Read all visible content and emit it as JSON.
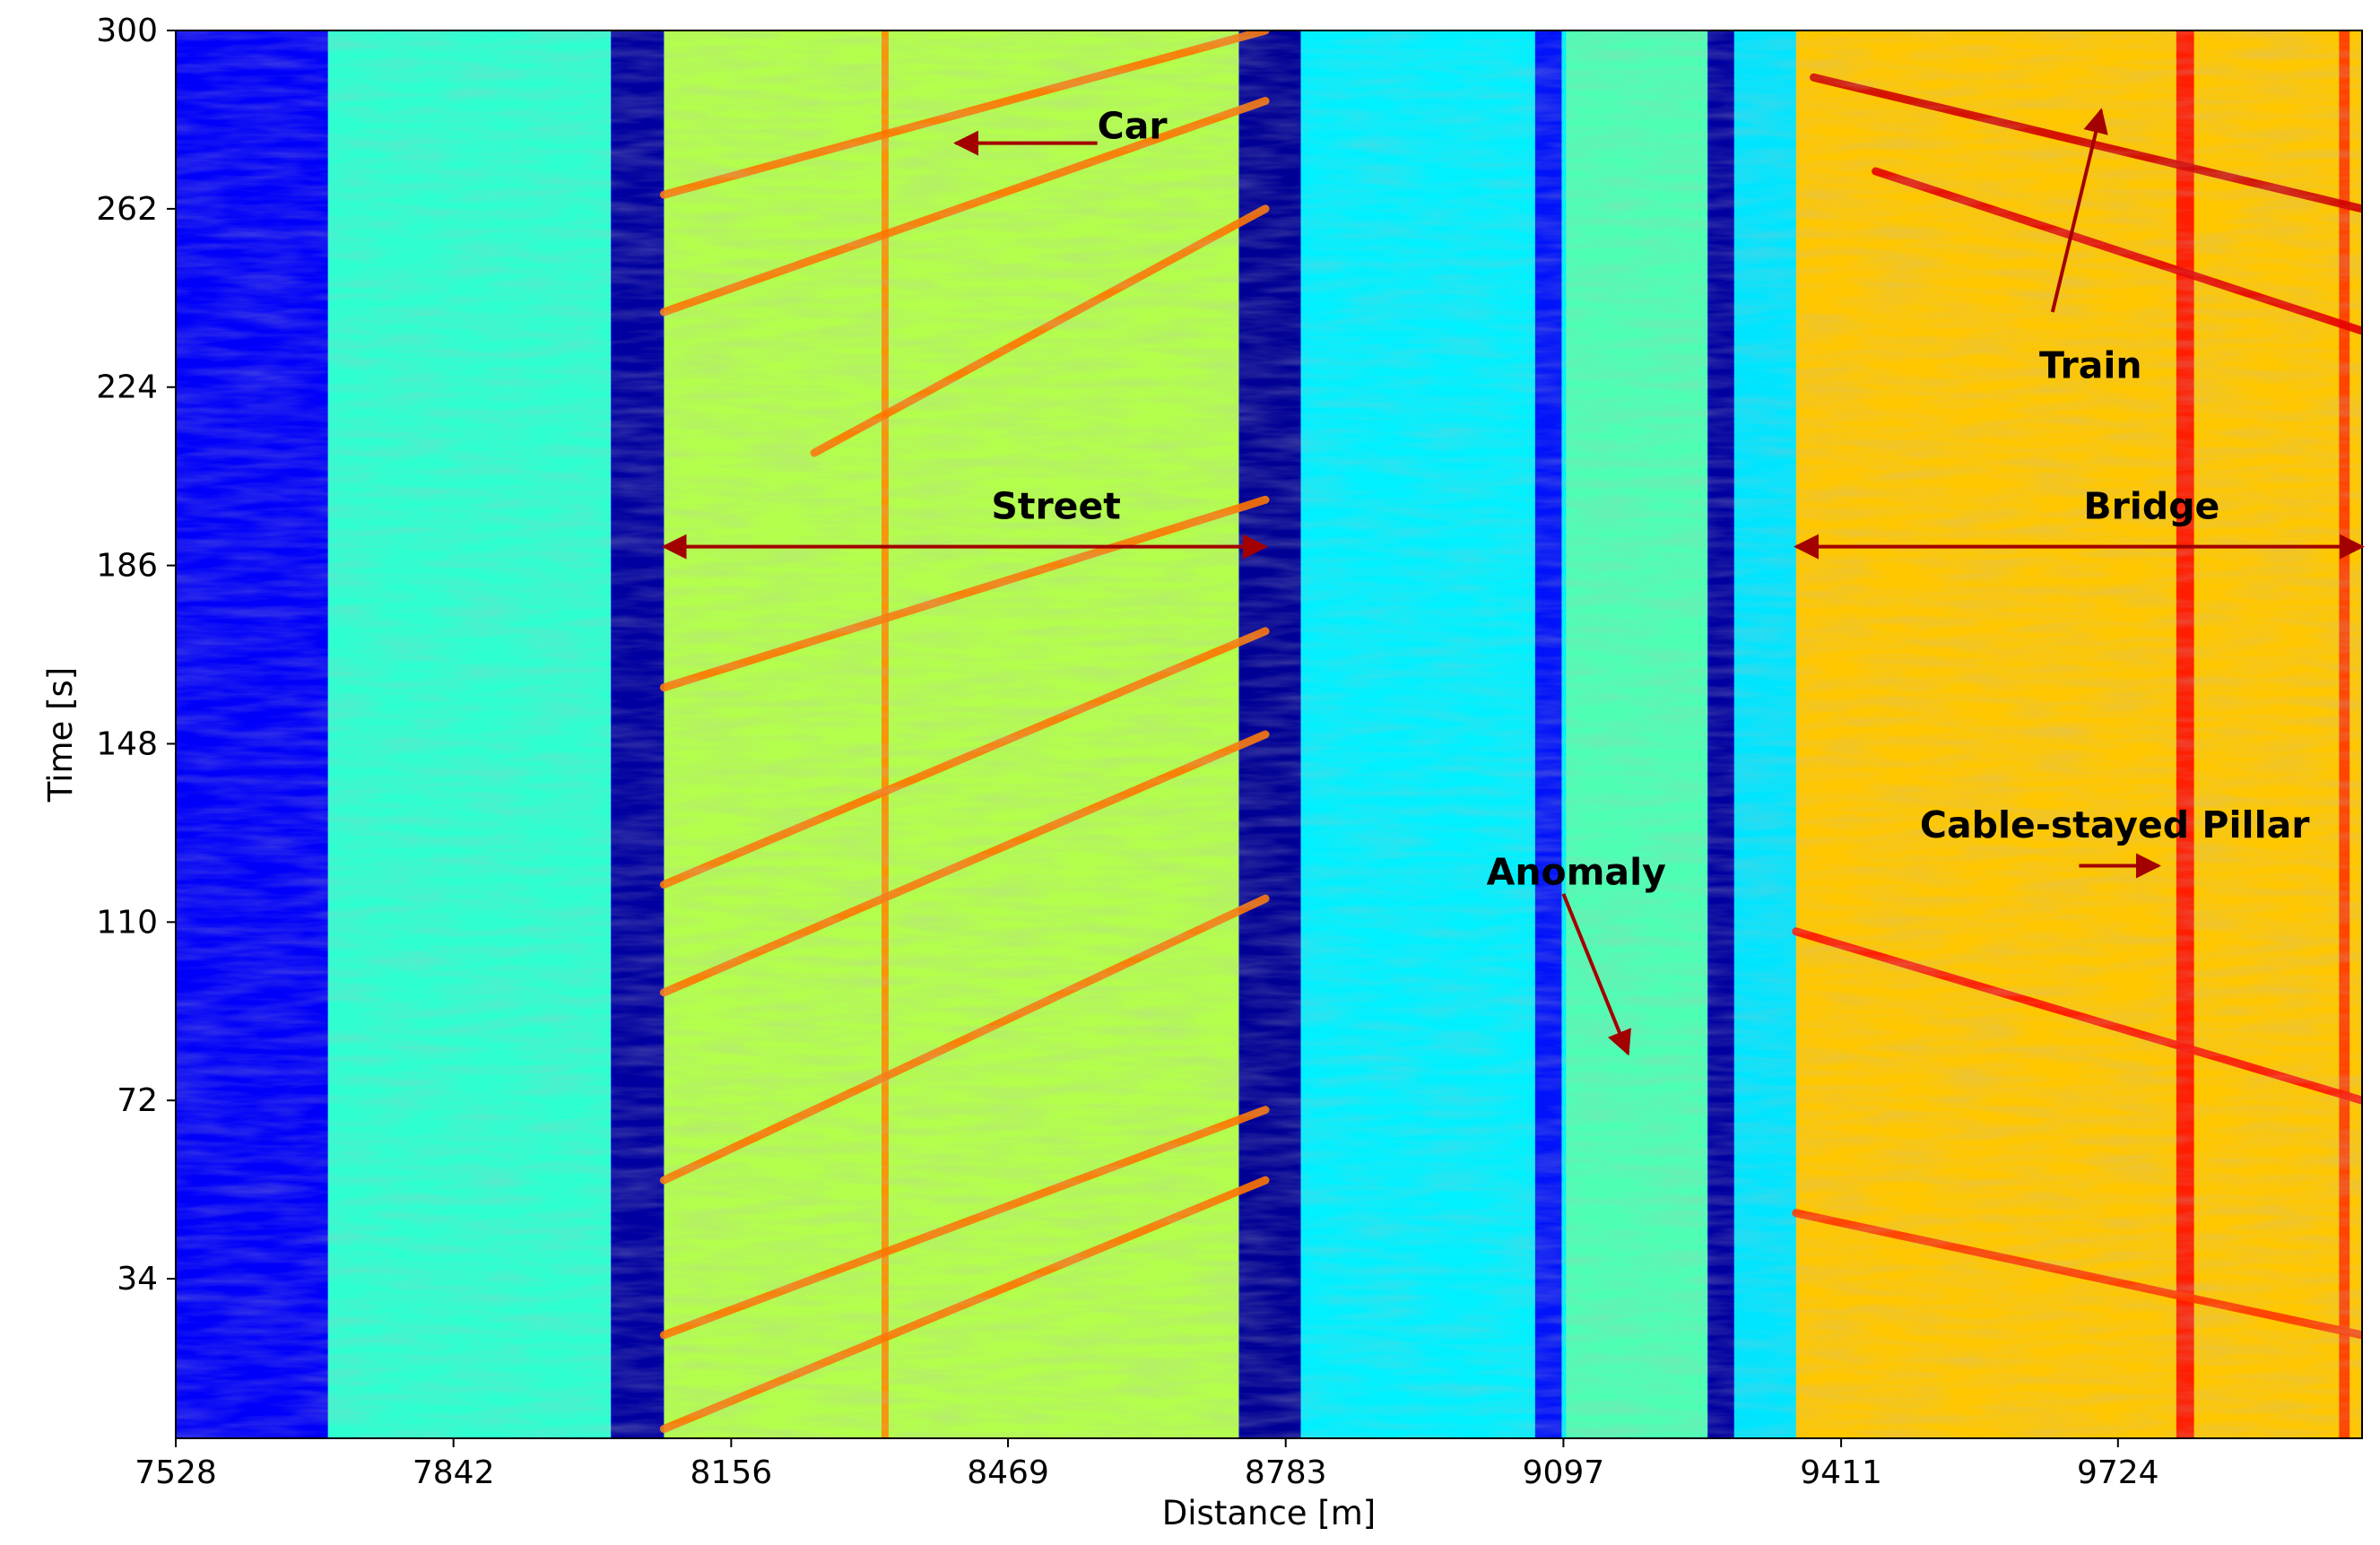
{
  "chart_data": {
    "type": "heatmap",
    "title": "",
    "xlabel": "Distance [m]",
    "ylabel": "Time [s]",
    "xlim": [
      7528,
      10000
    ],
    "ylim": [
      0,
      300
    ],
    "colormap": "jet",
    "x_ticks": [
      "7528",
      "7842",
      "8156",
      "8469",
      "8783",
      "9097",
      "9411",
      "9724"
    ],
    "x_tick_values": [
      7528,
      7842,
      8156,
      8469,
      8783,
      9097,
      9411,
      9724
    ],
    "y_ticks": [
      "34",
      "72",
      "110",
      "148",
      "186",
      "224",
      "262",
      "300"
    ],
    "y_tick_values": [
      34,
      72,
      110,
      148,
      186,
      224,
      262,
      300
    ],
    "regions": [
      {
        "x_from": 7528,
        "x_to": 7700,
        "level": 0.12
      },
      {
        "x_from": 7700,
        "x_to": 8020,
        "level": 0.42
      },
      {
        "x_from": 8020,
        "x_to": 8080,
        "level": 0.05
      },
      {
        "x_from": 8080,
        "x_to": 8730,
        "level": 0.55
      },
      {
        "x_from": 8730,
        "x_to": 8800,
        "level": 0.04
      },
      {
        "x_from": 8800,
        "x_to": 9100,
        "level": 0.36
      },
      {
        "x_from": 9100,
        "x_to": 9260,
        "level": 0.45
      },
      {
        "x_from": 9260,
        "x_to": 9290,
        "level": 0.05
      },
      {
        "x_from": 9290,
        "x_to": 9360,
        "level": 0.35
      },
      {
        "x_from": 9360,
        "x_to": 10000,
        "level": 0.68
      }
    ],
    "vertical_bands": [
      {
        "x": 8050,
        "width": 55,
        "level": 0.03
      },
      {
        "x": 8765,
        "width": 65,
        "level": 0.02
      },
      {
        "x": 9275,
        "width": 25,
        "level": 0.03
      },
      {
        "x": 9080,
        "width": 30,
        "level": 0.12
      },
      {
        "x": 9800,
        "width": 20,
        "level": 0.86
      },
      {
        "x": 9980,
        "width": 12,
        "level": 0.82
      },
      {
        "x": 8330,
        "width": 8,
        "level": 0.74
      }
    ],
    "traces": [
      {
        "name": "car-1",
        "x": [
          8080,
          8760
        ],
        "y": [
          265,
          300
        ],
        "level": 0.76
      },
      {
        "name": "car-2",
        "x": [
          8080,
          8760
        ],
        "y": [
          240,
          285
        ],
        "level": 0.76
      },
      {
        "name": "car-3",
        "x": [
          8250,
          8760
        ],
        "y": [
          210,
          262
        ],
        "level": 0.76
      },
      {
        "name": "car-4",
        "x": [
          8080,
          8760
        ],
        "y": [
          160,
          200
        ],
        "level": 0.76
      },
      {
        "name": "car-5",
        "x": [
          8080,
          8760
        ],
        "y": [
          118,
          172
        ],
        "level": 0.76
      },
      {
        "name": "car-6",
        "x": [
          8080,
          8760
        ],
        "y": [
          95,
          150
        ],
        "level": 0.76
      },
      {
        "name": "car-7",
        "x": [
          8080,
          8760
        ],
        "y": [
          55,
          115
        ],
        "level": 0.76
      },
      {
        "name": "car-8",
        "x": [
          8080,
          8760
        ],
        "y": [
          22,
          70
        ],
        "level": 0.76
      },
      {
        "name": "car-9",
        "x": [
          8080,
          8760
        ],
        "y": [
          2,
          55
        ],
        "level": 0.76
      },
      {
        "name": "train-1",
        "x": [
          9380,
          10000
        ],
        "y": [
          290,
          262
        ],
        "level": 0.92
      },
      {
        "name": "train-2",
        "x": [
          9450,
          10000
        ],
        "y": [
          270,
          236
        ],
        "level": 0.9
      },
      {
        "name": "bridge-1",
        "x": [
          9360,
          10000
        ],
        "y": [
          108,
          72
        ],
        "level": 0.86
      },
      {
        "name": "bridge-2",
        "x": [
          9360,
          10000
        ],
        "y": [
          48,
          22
        ],
        "level": 0.82
      }
    ],
    "annotations": [
      {
        "label": "Car",
        "text_at": [
          8570,
          277
        ],
        "arrow_from": [
          8570,
          276
        ],
        "arrow_to": [
          8410,
          276
        ],
        "heads": "end"
      },
      {
        "label": "Street",
        "text_at": [
          8450,
          196
        ],
        "arrow_from": [
          8080,
          190
        ],
        "arrow_to": [
          8760,
          190
        ],
        "heads": "both"
      },
      {
        "label": "Bridge",
        "text_at": [
          9685,
          196
        ],
        "arrow_from": [
          9360,
          190
        ],
        "arrow_to": [
          10000,
          190
        ],
        "heads": "both"
      },
      {
        "label": "Train",
        "text_at": [
          9635,
          226
        ],
        "arrow_from": [
          9650,
          240
        ],
        "arrow_to": [
          9705,
          283
        ],
        "heads": "end"
      },
      {
        "label": "Anomaly",
        "text_at": [
          9010,
          118
        ],
        "arrow_from": [
          9097,
          116
        ],
        "arrow_to": [
          9170,
          82
        ],
        "heads": "end"
      },
      {
        "label": "Cable-stayed Pillar",
        "text_at": [
          9500,
          128
        ],
        "arrow_from": [
          9680,
          122
        ],
        "arrow_to": [
          9770,
          122
        ],
        "heads": "end"
      }
    ]
  }
}
